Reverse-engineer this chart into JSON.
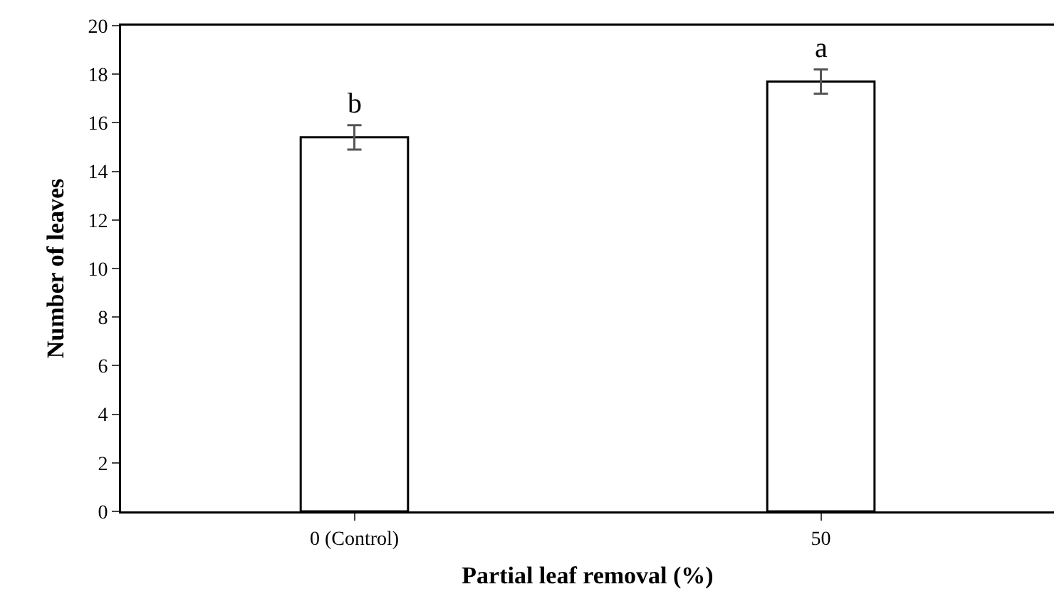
{
  "chart_data": {
    "type": "bar",
    "xlabel": "Partial leaf removal (%)",
    "ylabel": "Number of leaves",
    "categories": [
      "0 (Control)",
      "50"
    ],
    "values": [
      15.4,
      17.7
    ],
    "errors": [
      0.5,
      0.5
    ],
    "color": "#ffffff",
    "ylim": [
      0,
      20
    ],
    "yticks": [
      0,
      2,
      4,
      6,
      8,
      10,
      12,
      14,
      16,
      18,
      20
    ],
    "grid": false,
    "annotations": [
      "b",
      "a"
    ]
  }
}
